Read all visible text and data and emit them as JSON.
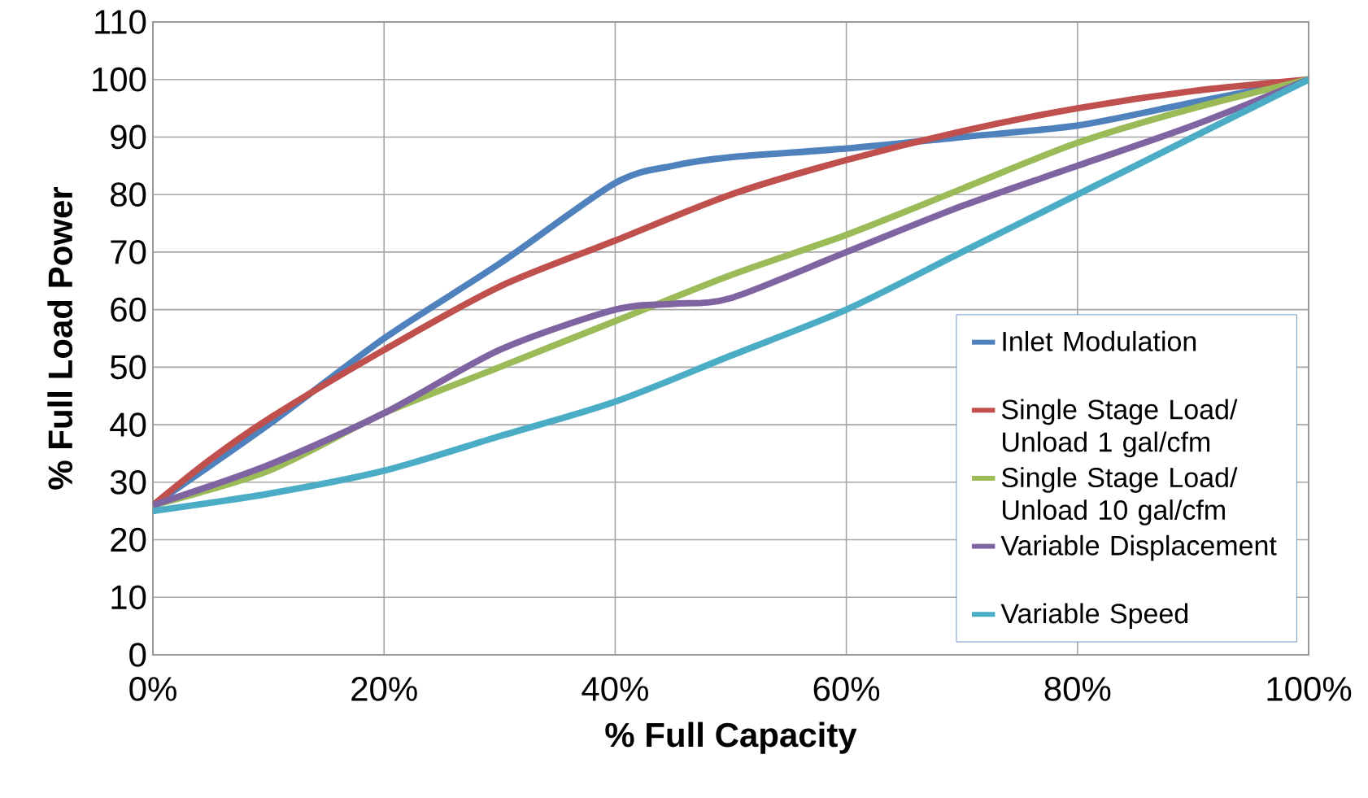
{
  "chart_data": {
    "type": "line",
    "xlabel": "%  Full Capacity",
    "ylabel": "% Full Load Power",
    "xlim": [
      0,
      100
    ],
    "ylim": [
      0,
      110
    ],
    "xticks": [
      {
        "value": 0,
        "label": "0%"
      },
      {
        "value": 20,
        "label": "20%"
      },
      {
        "value": 40,
        "label": "40%"
      },
      {
        "value": 60,
        "label": "60%"
      },
      {
        "value": 80,
        "label": "80%"
      },
      {
        "value": 100,
        "label": "100%"
      }
    ],
    "yticks": [
      0,
      10,
      20,
      30,
      40,
      50,
      60,
      70,
      80,
      90,
      100,
      110
    ],
    "grid": true,
    "legend": "bottom right",
    "series": [
      {
        "name": "Inlet Modulation",
        "color": "#4f81bd",
        "x": [
          0,
          10,
          20,
          30,
          40,
          45,
          50,
          60,
          70,
          80,
          90,
          100
        ],
        "values": [
          26,
          40,
          55,
          68,
          82,
          85,
          86.5,
          88,
          90,
          92,
          96,
          100
        ]
      },
      {
        "name": "Single Stage Load/ Unload 1 gal/cfm",
        "color": "#c0504d",
        "x": [
          0,
          5,
          10,
          20,
          30,
          40,
          50,
          60,
          70,
          80,
          90,
          100
        ],
        "values": [
          26,
          34,
          41,
          53,
          64,
          72,
          80,
          86,
          91,
          95,
          98,
          100
        ]
      },
      {
        "name": "Single Stage Load/ Unload 10 gal/cfm",
        "color": "#9bbb59",
        "x": [
          0,
          10,
          20,
          30,
          40,
          50,
          60,
          70,
          80,
          90,
          100
        ],
        "values": [
          26,
          32,
          42,
          50,
          58,
          66,
          73,
          81,
          89,
          95,
          100
        ]
      },
      {
        "name": "Variable Displacement",
        "color": "#8064a2",
        "x": [
          0,
          10,
          20,
          30,
          40,
          45,
          50,
          60,
          70,
          80,
          90,
          100
        ],
        "values": [
          26,
          33,
          42,
          53,
          60,
          61,
          62,
          70,
          78,
          85,
          92,
          100
        ]
      },
      {
        "name": "Variable Speed",
        "color": "#4bacc6",
        "x": [
          0,
          10,
          20,
          30,
          40,
          50,
          60,
          70,
          80,
          90,
          100
        ],
        "values": [
          25,
          28,
          32,
          38,
          44,
          52,
          60,
          70,
          80,
          90,
          100
        ]
      }
    ]
  }
}
